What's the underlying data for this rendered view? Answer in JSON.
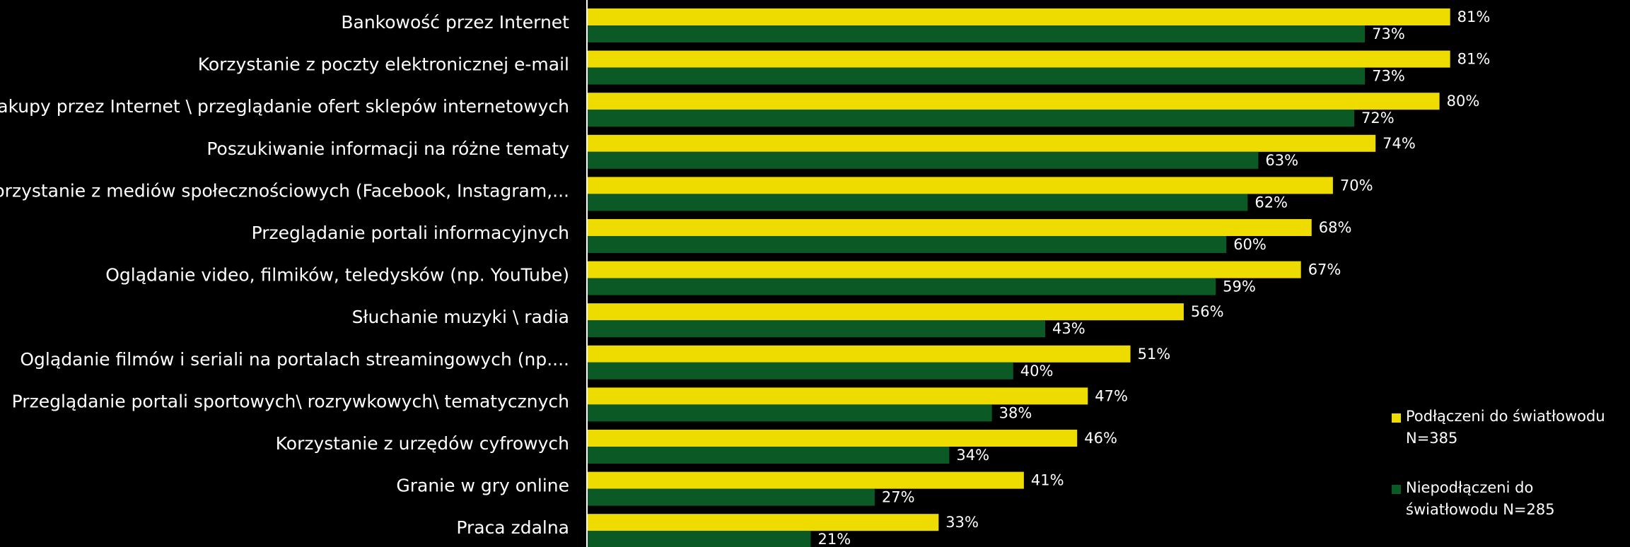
{
  "chart_data": {
    "type": "bar",
    "orientation": "horizontal",
    "categories": [
      "Bankowość przez Internet",
      "Korzystanie z poczty elektronicznej e-mail",
      "Zakupy przez Internet \\ przeglądanie ofert sklepów internetowych",
      "Poszukiwanie informacji na różne tematy",
      "Korzystanie z mediów społecznościowych (Facebook, Instagram,...",
      "Przeglądanie portali informacyjnych",
      "Oglądanie video, filmików, teledysków (np. YouTube)",
      "Słuchanie muzyki \\ radia",
      "Oglądanie filmów i seriali na portalach streamingowych (np....",
      "Przeglądanie portali sportowych\\ rozrywkowych\\ tematycznych",
      "Korzystanie z urzędów cyfrowych",
      "Granie w gry online",
      "Praca zdalna"
    ],
    "series": [
      {
        "name": "Podłączeni do światłowodu N=385",
        "color": "#EEDC00",
        "values": [
          81,
          81,
          80,
          74,
          70,
          68,
          67,
          56,
          51,
          47,
          46,
          41,
          33
        ]
      },
      {
        "name": "Niepodłączeni do światłowodu N=285",
        "color": "#0B5A26",
        "values": [
          73,
          73,
          72,
          63,
          62,
          60,
          59,
          43,
          40,
          38,
          34,
          27,
          21
        ]
      }
    ],
    "value_suffix": "%",
    "xlim": [
      0,
      100
    ],
    "axis_color": "#ffffff",
    "legend_position": "right",
    "legend": [
      {
        "label": "Podłączeni do światłowodu\nN=385",
        "color": "#EEDC00"
      },
      {
        "label": "Niepodłączeni do\nświatłowodu N=285",
        "color": "#0B5A26"
      }
    ]
  }
}
